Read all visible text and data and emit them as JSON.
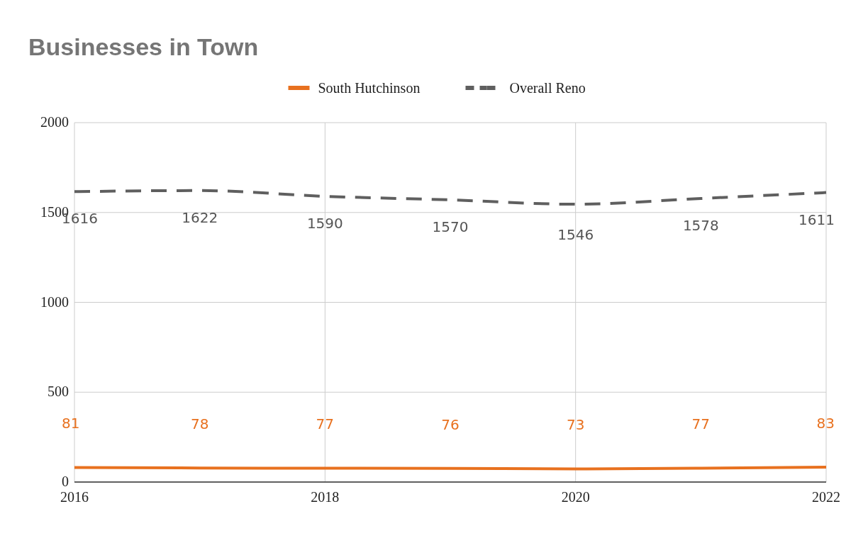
{
  "chart_data": {
    "type": "line",
    "title": "Businesses in Town",
    "x": [
      2016,
      2017,
      2018,
      2019,
      2020,
      2021,
      2022
    ],
    "series": [
      {
        "name": "South Hutchinson",
        "color": "#e8711f",
        "values": [
          81,
          78,
          77,
          76,
          73,
          77,
          83
        ],
        "line_style": "solid"
      },
      {
        "name": "Overall Reno",
        "color": "#5f5f5f",
        "values": [
          1616,
          1622,
          1590,
          1570,
          1546,
          1578,
          1611
        ],
        "line_style": "dashed"
      }
    ],
    "xlim": [
      2016,
      2022
    ],
    "xticks": [
      2016,
      2018,
      2020,
      2022
    ],
    "ylim": [
      0,
      2000
    ],
    "yticks": [
      0,
      500,
      1000,
      1500,
      2000
    ],
    "grid": true,
    "legend": "top",
    "data_labels": true,
    "marker": "none"
  }
}
